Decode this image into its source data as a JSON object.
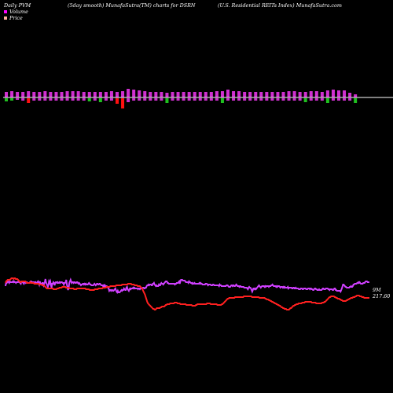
{
  "header": {
    "left": "Daily PVM",
    "mid": "(5day smooth) MunafaSutra(TM) charts for DSRN",
    "right": "(U.S. Residential REITs Index) MunafaSutra.com"
  },
  "legend": [
    {
      "label": "Volume",
      "color": "#ff00ff"
    },
    {
      "label": "Price",
      "color": "#ffb0a0"
    }
  ],
  "chart_data": {
    "type": "line",
    "title": "",
    "last_labels": {
      "volume": "9M",
      "price": "217.60"
    },
    "colors": {
      "volume_line": "#d040ff",
      "price_line": "#ff2020",
      "bar_up": "#d030d0",
      "bar_down": "#20c020",
      "bar_big_down": "#ff1010",
      "baseline": "#ffffff"
    },
    "bars": [
      {
        "up": 7,
        "down": 4,
        "color": "green"
      },
      {
        "up": 8,
        "down": 3,
        "color": "green"
      },
      {
        "up": 7,
        "down": 2,
        "color": "up"
      },
      {
        "up": 7,
        "down": 3,
        "color": "up"
      },
      {
        "up": 8,
        "down": 6,
        "color": "red"
      },
      {
        "up": 7,
        "down": 3,
        "color": "up"
      },
      {
        "up": 7,
        "down": 3,
        "color": "up"
      },
      {
        "up": 8,
        "down": 3,
        "color": "up"
      },
      {
        "up": 7,
        "down": 3,
        "color": "up"
      },
      {
        "up": 7,
        "down": 3,
        "color": "up"
      },
      {
        "up": 7,
        "down": 3,
        "color": "up"
      },
      {
        "up": 8,
        "down": 3,
        "color": "up"
      },
      {
        "up": 8,
        "down": 3,
        "color": "up"
      },
      {
        "up": 8,
        "down": 3,
        "color": "up"
      },
      {
        "up": 7,
        "down": 3,
        "color": "up"
      },
      {
        "up": 7,
        "down": 4,
        "color": "green"
      },
      {
        "up": 7,
        "down": 3,
        "color": "up"
      },
      {
        "up": 7,
        "down": 5,
        "color": "green"
      },
      {
        "up": 7,
        "down": 3,
        "color": "up"
      },
      {
        "up": 8,
        "down": 3,
        "color": "up"
      },
      {
        "up": 7,
        "down": 7,
        "color": "red"
      },
      {
        "up": 8,
        "down": 13,
        "color": "red"
      },
      {
        "up": 11,
        "down": 5,
        "color": "up"
      },
      {
        "up": 10,
        "down": 3,
        "color": "up"
      },
      {
        "up": 9,
        "down": 3,
        "color": "up"
      },
      {
        "up": 8,
        "down": 3,
        "color": "up"
      },
      {
        "up": 7,
        "down": 3,
        "color": "up"
      },
      {
        "up": 7,
        "down": 3,
        "color": "up"
      },
      {
        "up": 7,
        "down": 3,
        "color": "up"
      },
      {
        "up": 6,
        "down": 6,
        "color": "green"
      },
      {
        "up": 7,
        "down": 3,
        "color": "up"
      },
      {
        "up": 7,
        "down": 3,
        "color": "up"
      },
      {
        "up": 7,
        "down": 3,
        "color": "up"
      },
      {
        "up": 7,
        "down": 3,
        "color": "up"
      },
      {
        "up": 7,
        "down": 3,
        "color": "up"
      },
      {
        "up": 7,
        "down": 3,
        "color": "up"
      },
      {
        "up": 7,
        "down": 3,
        "color": "up"
      },
      {
        "up": 7,
        "down": 3,
        "color": "up"
      },
      {
        "up": 8,
        "down": 3,
        "color": "up"
      },
      {
        "up": 8,
        "down": 6,
        "color": "green"
      },
      {
        "up": 10,
        "down": 3,
        "color": "up"
      },
      {
        "up": 8,
        "down": 3,
        "color": "up"
      },
      {
        "up": 8,
        "down": 3,
        "color": "up"
      },
      {
        "up": 7,
        "down": 3,
        "color": "up"
      },
      {
        "up": 7,
        "down": 3,
        "color": "up"
      },
      {
        "up": 7,
        "down": 3,
        "color": "up"
      },
      {
        "up": 7,
        "down": 3,
        "color": "up"
      },
      {
        "up": 7,
        "down": 3,
        "color": "up"
      },
      {
        "up": 7,
        "down": 3,
        "color": "up"
      },
      {
        "up": 7,
        "down": 3,
        "color": "up"
      },
      {
        "up": 7,
        "down": 3,
        "color": "up"
      },
      {
        "up": 8,
        "down": 3,
        "color": "up"
      },
      {
        "up": 8,
        "down": 3,
        "color": "up"
      },
      {
        "up": 7,
        "down": 3,
        "color": "up"
      },
      {
        "up": 7,
        "down": 5,
        "color": "green"
      },
      {
        "up": 8,
        "down": 3,
        "color": "up"
      },
      {
        "up": 8,
        "down": 3,
        "color": "up"
      },
      {
        "up": 7,
        "down": 3,
        "color": "up"
      },
      {
        "up": 9,
        "down": 6,
        "color": "green"
      },
      {
        "up": 10,
        "down": 3,
        "color": "up"
      },
      {
        "up": 9,
        "down": 3,
        "color": "up"
      },
      {
        "up": 9,
        "down": 3,
        "color": "up"
      },
      {
        "up": 6,
        "down": 3,
        "color": "up"
      },
      {
        "up": 4,
        "down": 6,
        "color": "green"
      }
    ],
    "volume_line": [
      14,
      9,
      10,
      9,
      8,
      9,
      10,
      8,
      9,
      9,
      9,
      9,
      8,
      9,
      8,
      9,
      9,
      10,
      9,
      9,
      9,
      8,
      9,
      9,
      10,
      11,
      8,
      8,
      9,
      10,
      11,
      9,
      9,
      10,
      9,
      9,
      10,
      10,
      10,
      10,
      9,
      8,
      8,
      9,
      9,
      9,
      9,
      9,
      10,
      9,
      10,
      10,
      9,
      8,
      10,
      12,
      8,
      11,
      11,
      12,
      10,
      10,
      13,
      11,
      9,
      5,
      9,
      11,
      13,
      15,
      12,
      8,
      10,
      8,
      13,
      16,
      11,
      11,
      9,
      10,
      13,
      10,
      9,
      9,
      10,
      9,
      10,
      10,
      9,
      10,
      9,
      9,
      9,
      10,
      10,
      12,
      10,
      10,
      9,
      6,
      12,
      16,
      19,
      16,
      10,
      8,
      6,
      8,
      10,
      9,
      9,
      10,
      9,
      9,
      10,
      10,
      9,
      9,
      10,
      11,
      10,
      11,
      12,
      13,
      12,
      12,
      11,
      11,
      12,
      11,
      12,
      11,
      12,
      12,
      12,
      11,
      10,
      11,
      12,
      12,
      13,
      13,
      13,
      13,
      12,
      11,
      12,
      13,
      12,
      11,
      11,
      12,
      12,
      11,
      11,
      12,
      13,
      13,
      13,
      14,
      13,
      15,
      13,
      14,
      14,
      14,
      15,
      16,
      17,
      20,
      19,
      19,
      20,
      19,
      19,
      20,
      20,
      19,
      18,
      17,
      19,
      21,
      22,
      20,
      22,
      22,
      22,
      21,
      20,
      19,
      20,
      19,
      19,
      17,
      18,
      19,
      19,
      16,
      15,
      18,
      19,
      20,
      18,
      17,
      18,
      17,
      17,
      17,
      16,
      17,
      16,
      17,
      17,
      17,
      17,
      17,
      18,
      17,
      17,
      18,
      17,
      17,
      17,
      17,
      16,
      16,
      17,
      17,
      16,
      16,
      14,
      13,
      13,
      12,
      13,
      12,
      12,
      12,
      13,
      13,
      11,
      11,
      10,
      12,
      13,
      14,
      13,
      14,
      14,
      14,
      12,
      13,
      13,
      11,
      10,
      11,
      11,
      12,
      11,
      10,
      9,
      8,
      8,
      8,
      10,
      10,
      11,
      11,
      11,
      11,
      11,
      11,
      11,
      11,
      11,
      11,
      12,
      11,
      11,
      10,
      10,
      10,
      9,
      8,
      11,
      8,
      6,
      6,
      6,
      7,
      7,
      7,
      7,
      8,
      9,
      9,
      9,
      9,
      10,
      8,
      9,
      9,
      10,
      10,
      11,
      10,
      11,
      11,
      10,
      11,
      11,
      11,
      11,
      11,
      11,
      11,
      10,
      11,
      10,
      11,
      11,
      12,
      12,
      12,
      12,
      12,
      11,
      11,
      11,
      12,
      13,
      12,
      12,
      12,
      12,
      13,
      13,
      13,
      12,
      12,
      13,
      13,
      13,
      13,
      13,
      13,
      13,
      13,
      14,
      12,
      13,
      13,
      14,
      14,
      14,
      14,
      14,
      14,
      14,
      14,
      13,
      13,
      13,
      14,
      15,
      15,
      15,
      14,
      13,
      13,
      14,
      13,
      13,
      14,
      14,
      13,
      12,
      13,
      14,
      14,
      14,
      15,
      14,
      14,
      15,
      15,
      15,
      15,
      15,
      16,
      16,
      16,
      16,
      16,
      17,
      18,
      16,
      15,
      16,
      16,
      17,
      19,
      21,
      19,
      17,
      17,
      18,
      17,
      18,
      17,
      16,
      15,
      14,
      13,
      14,
      15,
      16,
      15,
      14,
      14,
      14,
      14,
      15,
      14,
      15,
      14,
      14,
      14,
      14,
      15,
      14,
      14,
      14,
      13,
      13,
      12,
      13,
      14,
      14,
      14,
      14,
      15,
      14,
      15,
      14,
      14,
      14,
      15,
      16,
      15,
      15,
      15,
      16,
      15,
      16,
      15,
      16,
      16,
      16,
      16,
      15,
      17,
      16,
      16,
      16,
      16,
      16,
      17,
      17,
      16,
      16,
      17,
      17,
      16,
      17,
      17,
      17,
      17,
      18,
      18,
      18,
      17,
      17,
      17,
      18,
      18,
      17,
      17,
      17,
      17,
      18,
      18,
      18,
      17,
      17,
      17,
      18,
      17,
      17,
      18,
      18,
      19,
      19,
      18,
      17,
      17,
      18,
      18,
      19,
      19,
      19,
      18,
      19,
      19,
      19,
      19,
      18,
      17,
      17,
      18,
      18,
      18,
      17,
      17,
      17,
      17,
      18,
      18,
      19,
      18,
      18,
      18,
      18,
      19,
      19,
      18,
      17,
      17,
      19,
      19,
      20,
      20,
      20,
      20,
      20,
      20,
      21,
      19,
      17,
      15,
      12,
      12,
      13,
      14,
      15,
      15,
      16,
      16,
      16,
      16,
      16,
      15,
      15,
      14,
      15,
      15,
      14,
      12,
      12,
      11,
      11,
      11,
      11,
      10,
      10,
      9,
      10,
      9,
      10,
      11,
      11,
      11,
      11,
      10,
      10,
      10,
      9,
      8,
      8,
      8,
      9,
      9,
      9,
      9
    ],
    "price_line": [
      10,
      8,
      7,
      6,
      6,
      6,
      6,
      5,
      4,
      4,
      4,
      5,
      4,
      4,
      5,
      5,
      5,
      6,
      7,
      8,
      9,
      9,
      8,
      8,
      8,
      8,
      8,
      8,
      9,
      10,
      10,
      10,
      10,
      10,
      9,
      10,
      10,
      10,
      10,
      11,
      11,
      11,
      11,
      11,
      11,
      11,
      12,
      12,
      12,
      12,
      13,
      13,
      13,
      14,
      15,
      16,
      17,
      17,
      17,
      17,
      17,
      17,
      17,
      17,
      17,
      18,
      18,
      18,
      18,
      18,
      17,
      17,
      17,
      16,
      16,
      16,
      16,
      15,
      15,
      15,
      15,
      15,
      16,
      16,
      16,
      16,
      16,
      17,
      17,
      17,
      17,
      17,
      17,
      18,
      18,
      18,
      18,
      17,
      17,
      17,
      17,
      17,
      17,
      17,
      17,
      17,
      17,
      17,
      17,
      18,
      18,
      18,
      18,
      18,
      19,
      19,
      19,
      19,
      19,
      19,
      19,
      18,
      18,
      18,
      18,
      18,
      17,
      17,
      17,
      17,
      17,
      17,
      16,
      16,
      16,
      16,
      16,
      15,
      15,
      15,
      15,
      15,
      14,
      14,
      14,
      14,
      14,
      14,
      14,
      14,
      13,
      13,
      13,
      13,
      13,
      13,
      13,
      13,
      12,
      12,
      12,
      12,
      12,
      12,
      12,
      12,
      11,
      11,
      11,
      11,
      11,
      12,
      12,
      12,
      12,
      13,
      13,
      13,
      13,
      14,
      14,
      14,
      14,
      15,
      16,
      17,
      19,
      21,
      23,
      25,
      28,
      31,
      34,
      36,
      37,
      38,
      39,
      40,
      41,
      42,
      43,
      43,
      44,
      44,
      43,
      42,
      42,
      42,
      42,
      42,
      41,
      41,
      40,
      40,
      40,
      40,
      39,
      38,
      38,
      37,
      37,
      37,
      37,
      36,
      36,
      36,
      36,
      36,
      36,
      35,
      35,
      35,
      35,
      36,
      36,
      36,
      36,
      37,
      37,
      37,
      37,
      37,
      37,
      37,
      37,
      38,
      38,
      38,
      38,
      38,
      38,
      38,
      38,
      39,
      39,
      39,
      39,
      39,
      38,
      38,
      37,
      37,
      37,
      37,
      37,
      37,
      37,
      37,
      37,
      37,
      37,
      37,
      37,
      36,
      36,
      36,
      36,
      36,
      37,
      37,
      37,
      37,
      37,
      37,
      37,
      37,
      37,
      38,
      38,
      38,
      38,
      38,
      38,
      37,
      37,
      36,
      35,
      34,
      33,
      32,
      31,
      30,
      30,
      29,
      29,
      29,
      29,
      29,
      29,
      29,
      29,
      28,
      28,
      28,
      28,
      28,
      28,
      28,
      28,
      28,
      28,
      28,
      28,
      27,
      27,
      27,
      27,
      27,
      27,
      27,
      27,
      27,
      27,
      27,
      28,
      28,
      28,
      28,
      28,
      28,
      28,
      28,
      28,
      28,
      29,
      29,
      29,
      29,
      29,
      29,
      29,
      29,
      30,
      30,
      31,
      31,
      31,
      32,
      32,
      33,
      33,
      34,
      34,
      35,
      35,
      36,
      36,
      37,
      37,
      38,
      38,
      39,
      39,
      40,
      41,
      41,
      42,
      42,
      43,
      43,
      43,
      44,
      44,
      44,
      44,
      43,
      42,
      42,
      41,
      40,
      39,
      39,
      38,
      38,
      37,
      37,
      37,
      36,
      36,
      36,
      36,
      36,
      35,
      35,
      35,
      35,
      34,
      34,
      34,
      34,
      34,
      34,
      34,
      34,
      34,
      35,
      35,
      35,
      35,
      35,
      35,
      36,
      36,
      36,
      36,
      36,
      36,
      36,
      36,
      35,
      35,
      35,
      34,
      34,
      33,
      32,
      31,
      30,
      29,
      28,
      28,
      27,
      27,
      27,
      27,
      27,
      28,
      28,
      29,
      29,
      30,
      30,
      30,
      31,
      31,
      32,
      32,
      33,
      33,
      33,
      33,
      33,
      32,
      32,
      31,
      31,
      30,
      30,
      29,
      29,
      29,
      28,
      28,
      28,
      27,
      27,
      26,
      26,
      26,
      26,
      27,
      27,
      27,
      28,
      28,
      28,
      29,
      29,
      29,
      29,
      29,
      29,
      29,
      29
    ]
  }
}
